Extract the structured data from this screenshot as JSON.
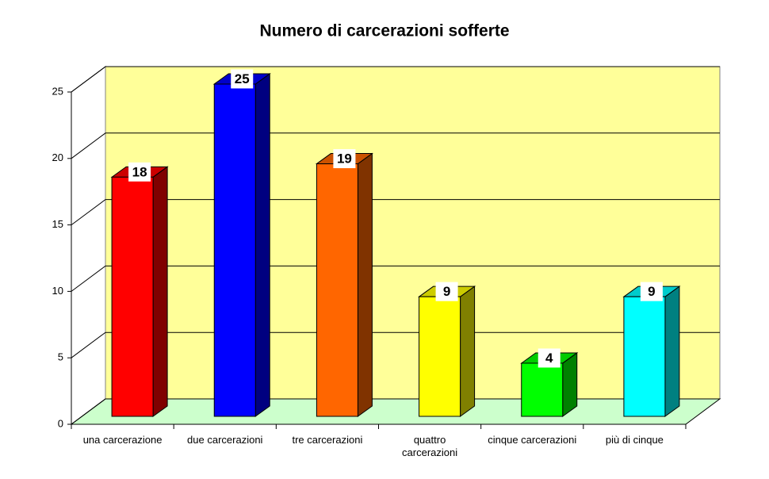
{
  "chart_data": {
    "type": "bar3d",
    "title": "Numero di carcerazioni sofferte",
    "categories": [
      "una carcerazione",
      "due carcerazioni",
      "tre carcerazioni",
      "quattro carcerazioni",
      "cinque carcerazioni",
      "più di cinque"
    ],
    "values": [
      18,
      25,
      19,
      9,
      4,
      9
    ],
    "colors": [
      "#ff0000",
      "#0000ff",
      "#ff6600",
      "#ffff00",
      "#00ff00",
      "#00ffff"
    ],
    "ylim": [
      0,
      25
    ],
    "yticks": [
      0,
      5,
      10,
      15,
      20,
      25
    ],
    "grid": true
  }
}
